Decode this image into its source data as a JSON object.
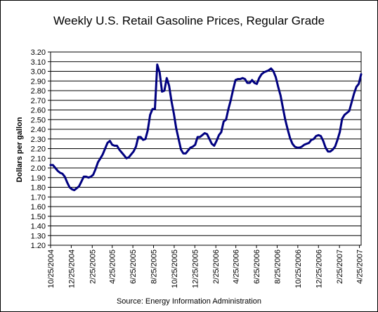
{
  "chart_data": {
    "type": "line",
    "title": "Weekly U.S. Retail Gasoline Prices, Regular Grade",
    "ylabel": "Dollars per gallon",
    "xlabel": "",
    "source": "Source:  Energy Information Administration",
    "ylim": [
      1.2,
      3.2
    ],
    "y_ticks": [
      "1.20",
      "1.30",
      "1.40",
      "1.50",
      "1.60",
      "1.70",
      "1.80",
      "1.90",
      "2.00",
      "2.10",
      "2.20",
      "2.30",
      "2.40",
      "2.50",
      "2.60",
      "2.70",
      "2.80",
      "2.90",
      "3.00",
      "3.10",
      "3.20"
    ],
    "x_ticks": [
      "10/25/2004",
      "12/25/2004",
      "2/25/2005",
      "4/25/2005",
      "6/25/2005",
      "8/25/2005",
      "10/25/2005",
      "12/25/2005",
      "2/25/2006",
      "4/25/2006",
      "6/25/2006",
      "8/25/2006",
      "10/25/2006",
      "12/25/2006",
      "2/25/2007",
      "4/25/2007"
    ],
    "x_range": [
      "2004-10-25",
      "2007-04-30"
    ],
    "grid": "horizontal",
    "legend": "none",
    "line_color": "#000080",
    "series": [
      {
        "name": "",
        "points": [
          [
            "2004-10-25",
            2.03
          ],
          [
            "2004-11-01",
            2.03
          ],
          [
            "2004-11-08",
            2.0
          ],
          [
            "2004-11-15",
            1.97
          ],
          [
            "2004-11-22",
            1.95
          ],
          [
            "2004-11-29",
            1.94
          ],
          [
            "2004-12-06",
            1.91
          ],
          [
            "2004-12-13",
            1.85
          ],
          [
            "2004-12-20",
            1.8
          ],
          [
            "2004-12-27",
            1.78
          ],
          [
            "2005-01-03",
            1.77
          ],
          [
            "2005-01-10",
            1.79
          ],
          [
            "2005-01-17",
            1.81
          ],
          [
            "2005-01-24",
            1.86
          ],
          [
            "2005-01-31",
            1.91
          ],
          [
            "2005-02-07",
            1.91
          ],
          [
            "2005-02-14",
            1.9
          ],
          [
            "2005-02-21",
            1.91
          ],
          [
            "2005-02-28",
            1.93
          ],
          [
            "2005-03-07",
            1.99
          ],
          [
            "2005-03-14",
            2.06
          ],
          [
            "2005-03-21",
            2.1
          ],
          [
            "2005-03-28",
            2.14
          ],
          [
            "2005-04-04",
            2.2
          ],
          [
            "2005-04-11",
            2.26
          ],
          [
            "2005-04-18",
            2.28
          ],
          [
            "2005-04-25",
            2.24
          ],
          [
            "2005-05-02",
            2.23
          ],
          [
            "2005-05-09",
            2.23
          ],
          [
            "2005-05-16",
            2.19
          ],
          [
            "2005-05-23",
            2.16
          ],
          [
            "2005-05-30",
            2.13
          ],
          [
            "2005-06-06",
            2.1
          ],
          [
            "2005-06-13",
            2.11
          ],
          [
            "2005-06-20",
            2.14
          ],
          [
            "2005-06-27",
            2.17
          ],
          [
            "2005-07-04",
            2.22
          ],
          [
            "2005-07-11",
            2.32
          ],
          [
            "2005-07-18",
            2.32
          ],
          [
            "2005-07-25",
            2.29
          ],
          [
            "2005-08-01",
            2.3
          ],
          [
            "2005-08-08",
            2.39
          ],
          [
            "2005-08-15",
            2.55
          ],
          [
            "2005-08-22",
            2.61
          ],
          [
            "2005-08-29",
            2.61
          ],
          [
            "2005-09-05",
            3.07
          ],
          [
            "2005-09-12",
            2.99
          ],
          [
            "2005-09-19",
            2.79
          ],
          [
            "2005-09-26",
            2.8
          ],
          [
            "2005-10-03",
            2.93
          ],
          [
            "2005-10-10",
            2.85
          ],
          [
            "2005-10-17",
            2.69
          ],
          [
            "2005-10-24",
            2.56
          ],
          [
            "2005-10-31",
            2.41
          ],
          [
            "2005-11-07",
            2.3
          ],
          [
            "2005-11-14",
            2.19
          ],
          [
            "2005-11-21",
            2.15
          ],
          [
            "2005-11-28",
            2.15
          ],
          [
            "2005-12-05",
            2.18
          ],
          [
            "2005-12-12",
            2.21
          ],
          [
            "2005-12-19",
            2.22
          ],
          [
            "2005-12-26",
            2.24
          ],
          [
            "2006-01-02",
            2.32
          ],
          [
            "2006-01-09",
            2.32
          ],
          [
            "2006-01-16",
            2.34
          ],
          [
            "2006-01-23",
            2.36
          ],
          [
            "2006-01-30",
            2.35
          ],
          [
            "2006-02-06",
            2.3
          ],
          [
            "2006-02-13",
            2.25
          ],
          [
            "2006-02-20",
            2.23
          ],
          [
            "2006-02-27",
            2.28
          ],
          [
            "2006-03-06",
            2.34
          ],
          [
            "2006-03-13",
            2.37
          ],
          [
            "2006-03-20",
            2.48
          ],
          [
            "2006-03-27",
            2.5
          ],
          [
            "2006-04-03",
            2.61
          ],
          [
            "2006-04-10",
            2.7
          ],
          [
            "2006-04-17",
            2.81
          ],
          [
            "2006-04-24",
            2.91
          ],
          [
            "2006-05-01",
            2.92
          ],
          [
            "2006-05-08",
            2.92
          ],
          [
            "2006-05-15",
            2.93
          ],
          [
            "2006-05-22",
            2.92
          ],
          [
            "2006-05-29",
            2.88
          ],
          [
            "2006-06-05",
            2.88
          ],
          [
            "2006-06-12",
            2.91
          ],
          [
            "2006-06-19",
            2.88
          ],
          [
            "2006-06-26",
            2.87
          ],
          [
            "2006-07-03",
            2.93
          ],
          [
            "2006-07-10",
            2.97
          ],
          [
            "2006-07-17",
            2.99
          ],
          [
            "2006-07-24",
            3.0
          ],
          [
            "2006-07-31",
            3.01
          ],
          [
            "2006-08-07",
            3.03
          ],
          [
            "2006-08-14",
            3.0
          ],
          [
            "2006-08-21",
            2.94
          ],
          [
            "2006-08-28",
            2.84
          ],
          [
            "2006-09-04",
            2.75
          ],
          [
            "2006-09-11",
            2.62
          ],
          [
            "2006-09-18",
            2.5
          ],
          [
            "2006-09-25",
            2.4
          ],
          [
            "2006-10-02",
            2.31
          ],
          [
            "2006-10-09",
            2.25
          ],
          [
            "2006-10-16",
            2.22
          ],
          [
            "2006-10-23",
            2.21
          ],
          [
            "2006-10-30",
            2.21
          ],
          [
            "2006-11-06",
            2.22
          ],
          [
            "2006-11-13",
            2.24
          ],
          [
            "2006-11-20",
            2.25
          ],
          [
            "2006-11-27",
            2.26
          ],
          [
            "2006-12-04",
            2.29
          ],
          [
            "2006-12-11",
            2.3
          ],
          [
            "2006-12-18",
            2.33
          ],
          [
            "2006-12-25",
            2.34
          ],
          [
            "2007-01-01",
            2.33
          ],
          [
            "2007-01-08",
            2.28
          ],
          [
            "2007-01-15",
            2.21
          ],
          [
            "2007-01-22",
            2.17
          ],
          [
            "2007-01-29",
            2.17
          ],
          [
            "2007-02-05",
            2.19
          ],
          [
            "2007-02-12",
            2.22
          ],
          [
            "2007-02-19",
            2.29
          ],
          [
            "2007-02-26",
            2.37
          ],
          [
            "2007-03-05",
            2.51
          ],
          [
            "2007-03-12",
            2.55
          ],
          [
            "2007-03-19",
            2.57
          ],
          [
            "2007-03-26",
            2.59
          ],
          [
            "2007-04-02",
            2.68
          ],
          [
            "2007-04-09",
            2.77
          ],
          [
            "2007-04-16",
            2.84
          ],
          [
            "2007-04-23",
            2.87
          ],
          [
            "2007-04-30",
            2.97
          ]
        ]
      }
    ]
  }
}
